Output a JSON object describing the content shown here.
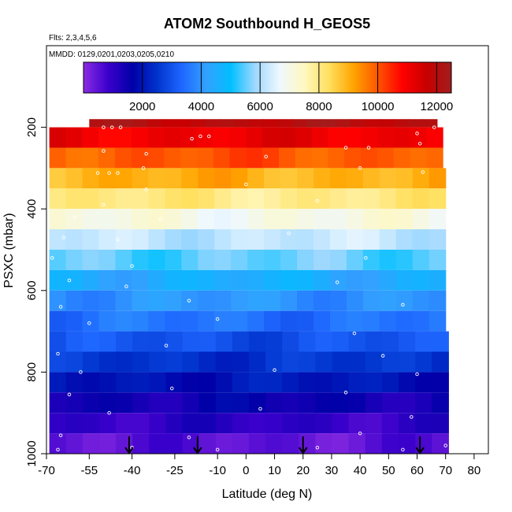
{
  "chart_data": {
    "type": "heatmap",
    "title": "ATOM2 Southbound H_GEOS5",
    "subtitle_flights": "Flts: 2,3,4,5,6",
    "subtitle_dates": "MMDD: 0129,0201,0203,0205,0210",
    "xlabel": "Latitude (deg N)",
    "ylabel": "PSXC (mbar)",
    "xlim": [
      -70,
      85
    ],
    "ylim": [
      1000,
      0
    ],
    "x_ticks": [
      -70,
      -55,
      -40,
      -25,
      -10,
      0,
      10,
      20,
      30,
      40,
      50,
      60,
      70,
      80
    ],
    "x_tick_labels": [
      "-70",
      "-55",
      "-40",
      "-25",
      "-10",
      "0",
      "10",
      "20",
      "30",
      "40",
      "50",
      "60",
      "70",
      "80"
    ],
    "y_ticks": [
      200,
      400,
      600,
      800,
      1000
    ],
    "y_tick_labels": [
      "200",
      "400",
      "600",
      "800",
      "1000"
    ],
    "colorbar": {
      "min": 0,
      "max": 12500,
      "ticks": [
        2000,
        4000,
        6000,
        8000,
        10000,
        12000
      ],
      "tick_labels": [
        "2000",
        "4000",
        "6000",
        "8000",
        "10000",
        "12000"
      ],
      "colors": [
        "#8a2be2",
        "#3b00cc",
        "#0000a8",
        "#0033cc",
        "#1e66ff",
        "#33a0ff",
        "#00bfff",
        "#9fd8ff",
        "#eef8ff",
        "#fff8c0",
        "#ffe060",
        "#ffa500",
        "#ff5500",
        "#ff0000",
        "#c80000",
        "#a01e1e"
      ]
    },
    "bands": [
      {
        "p_top": 180,
        "p_bot": 200,
        "lat_min": -55,
        "lat_max": 67,
        "value": 12000
      },
      {
        "p_top": 200,
        "p_bot": 250,
        "lat_min": -69,
        "lat_max": 69,
        "value": 11100
      },
      {
        "p_top": 250,
        "p_bot": 300,
        "lat_min": -69,
        "lat_max": 69,
        "value": 10000
      },
      {
        "p_top": 300,
        "p_bot": 350,
        "lat_min": -69,
        "lat_max": 70,
        "value": 9000
      },
      {
        "p_top": 350,
        "p_bot": 400,
        "lat_min": -69,
        "lat_max": 70,
        "value": 8000
      },
      {
        "p_top": 400,
        "p_bot": 450,
        "lat_min": -69,
        "lat_max": 70,
        "value": 7000
      },
      {
        "p_top": 450,
        "p_bot": 500,
        "lat_min": -69,
        "lat_max": 70,
        "value": 6200
      },
      {
        "p_top": 500,
        "p_bot": 550,
        "lat_min": -69,
        "lat_max": 70,
        "value": 5500
      },
      {
        "p_top": 550,
        "p_bot": 600,
        "lat_min": -69,
        "lat_max": 70,
        "value": 4500
      },
      {
        "p_top": 600,
        "p_bot": 650,
        "lat_min": -69,
        "lat_max": 70,
        "value": 4000
      },
      {
        "p_top": 650,
        "p_bot": 700,
        "lat_min": -69,
        "lat_max": 70,
        "value": 3500
      },
      {
        "p_top": 700,
        "p_bot": 750,
        "lat_min": -69,
        "lat_max": 71,
        "value": 3000
      },
      {
        "p_top": 750,
        "p_bot": 800,
        "lat_min": -69,
        "lat_max": 71,
        "value": 2500
      },
      {
        "p_top": 800,
        "p_bot": 850,
        "lat_min": -69,
        "lat_max": 71,
        "value": 2000
      },
      {
        "p_top": 850,
        "p_bot": 900,
        "lat_min": -69,
        "lat_max": 71,
        "value": 1500
      },
      {
        "p_top": 900,
        "p_bot": 950,
        "lat_min": -69,
        "lat_max": 71,
        "value": 1000
      },
      {
        "p_top": 950,
        "p_bot": 1000,
        "lat_min": -69,
        "lat_max": 71,
        "value": 500
      }
    ],
    "arrows_lat": [
      -41,
      -17,
      20,
      61
    ],
    "sample_points": [
      {
        "lat": -50,
        "p": 200
      },
      {
        "lat": -47,
        "p": 200
      },
      {
        "lat": -44,
        "p": 200
      },
      {
        "lat": -19,
        "p": 228
      },
      {
        "lat": -16,
        "p": 222
      },
      {
        "lat": -13,
        "p": 222
      },
      {
        "lat": 66,
        "p": 200
      },
      {
        "lat": 60,
        "p": 215
      },
      {
        "lat": -50,
        "p": 258
      },
      {
        "lat": -35,
        "p": 265
      },
      {
        "lat": 7,
        "p": 272
      },
      {
        "lat": 35,
        "p": 250
      },
      {
        "lat": 43,
        "p": 250
      },
      {
        "lat": 61,
        "p": 240
      },
      {
        "lat": -52,
        "p": 312
      },
      {
        "lat": -48,
        "p": 312
      },
      {
        "lat": -45,
        "p": 312
      },
      {
        "lat": -36,
        "p": 300
      },
      {
        "lat": 40,
        "p": 300
      },
      {
        "lat": 62,
        "p": 310
      },
      {
        "lat": -35,
        "p": 352
      },
      {
        "lat": -50,
        "p": 390
      },
      {
        "lat": 0,
        "p": 340
      },
      {
        "lat": -60,
        "p": 420
      },
      {
        "lat": -30,
        "p": 425
      },
      {
        "lat": 25,
        "p": 380
      },
      {
        "lat": -64,
        "p": 470
      },
      {
        "lat": -45,
        "p": 475
      },
      {
        "lat": 15,
        "p": 460
      },
      {
        "lat": -68,
        "p": 520
      },
      {
        "lat": -40,
        "p": 540
      },
      {
        "lat": 42,
        "p": 520
      },
      {
        "lat": -62,
        "p": 575
      },
      {
        "lat": -42,
        "p": 590
      },
      {
        "lat": 32,
        "p": 580
      },
      {
        "lat": -65,
        "p": 640
      },
      {
        "lat": -20,
        "p": 625
      },
      {
        "lat": 55,
        "p": 635
      },
      {
        "lat": -55,
        "p": 680
      },
      {
        "lat": -10,
        "p": 670
      },
      {
        "lat": 38,
        "p": 705
      },
      {
        "lat": -66,
        "p": 755
      },
      {
        "lat": -28,
        "p": 735
      },
      {
        "lat": 48,
        "p": 760
      },
      {
        "lat": -58,
        "p": 800
      },
      {
        "lat": 10,
        "p": 795
      },
      {
        "lat": 60,
        "p": 805
      },
      {
        "lat": -62,
        "p": 855
      },
      {
        "lat": -26,
        "p": 840
      },
      {
        "lat": 35,
        "p": 850
      },
      {
        "lat": -48,
        "p": 900
      },
      {
        "lat": 5,
        "p": 890
      },
      {
        "lat": 58,
        "p": 910
      },
      {
        "lat": -65,
        "p": 955
      },
      {
        "lat": -20,
        "p": 960
      },
      {
        "lat": 40,
        "p": 950
      },
      {
        "lat": -66,
        "p": 990
      },
      {
        "lat": -40,
        "p": 985
      },
      {
        "lat": -10,
        "p": 990
      },
      {
        "lat": 25,
        "p": 985
      },
      {
        "lat": 55,
        "p": 990
      },
      {
        "lat": 70,
        "p": 980
      }
    ]
  }
}
